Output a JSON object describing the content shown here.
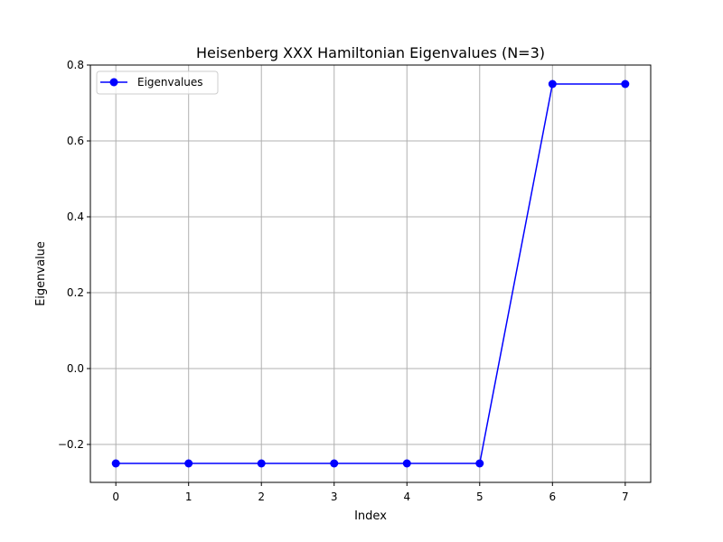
{
  "chart_data": {
    "type": "line",
    "title": "Heisenberg XXX Hamiltonian Eigenvalues (N=3)",
    "xlabel": "Index",
    "ylabel": "Eigenvalue",
    "x": [
      0,
      1,
      2,
      3,
      4,
      5,
      6,
      7
    ],
    "series": [
      {
        "name": "Eigenvalues",
        "values": [
          -0.25,
          -0.25,
          -0.25,
          -0.25,
          -0.25,
          -0.25,
          0.75,
          0.75
        ],
        "color": "#0000ff"
      }
    ],
    "xlim": [
      -0.35,
      7.35
    ],
    "ylim": [
      -0.3,
      0.8
    ],
    "xticks": [
      0,
      1,
      2,
      3,
      4,
      5,
      6,
      7
    ],
    "yticks": [
      -0.2,
      0.0,
      0.2,
      0.4,
      0.6,
      0.8
    ],
    "ytick_labels": [
      "−0.2",
      "0.0",
      "0.2",
      "0.4",
      "0.6",
      "0.8"
    ],
    "grid": true,
    "legend": "upper-left"
  }
}
